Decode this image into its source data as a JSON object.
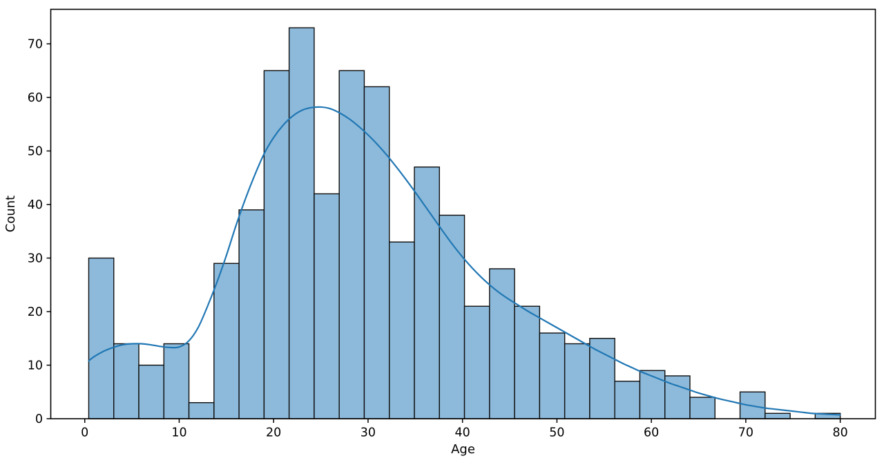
{
  "chart_data": {
    "type": "histogram",
    "title": "",
    "xlabel": "Age",
    "ylabel": "Count",
    "xlim": [
      -3.6,
      83.72
    ],
    "ylim": [
      0,
      76.45
    ],
    "xticks": [
      0,
      10,
      20,
      30,
      40,
      50,
      60,
      70,
      80
    ],
    "yticks": [
      0,
      10,
      20,
      30,
      40,
      50,
      60,
      70
    ],
    "grid": false,
    "legend": "none",
    "bins": {
      "edges": [
        0.42,
        3.073,
        5.725,
        8.378,
        11.031,
        13.683,
        16.336,
        18.989,
        21.641,
        24.294,
        26.947,
        29.599,
        32.252,
        34.905,
        37.557,
        40.21,
        42.863,
        45.515,
        48.168,
        50.821,
        53.473,
        56.126,
        58.779,
        61.431,
        64.084,
        66.737,
        69.389,
        72.042,
        74.695,
        77.347,
        80.0
      ],
      "counts": [
        30,
        14,
        10,
        14,
        3,
        29,
        39,
        65,
        73,
        42,
        65,
        62,
        33,
        47,
        38,
        21,
        28,
        21,
        16,
        14,
        15,
        7,
        9,
        8,
        4,
        0,
        5,
        1,
        0,
        1
      ]
    },
    "kde_series": {
      "name": "kde",
      "points": [
        [
          0.42,
          10.8
        ],
        [
          1,
          11.6
        ],
        [
          2,
          12.6
        ],
        [
          3,
          13.3
        ],
        [
          4,
          13.8
        ],
        [
          5,
          14.0
        ],
        [
          6,
          14.0
        ],
        [
          7,
          13.8
        ],
        [
          8,
          13.5
        ],
        [
          9,
          13.3
        ],
        [
          10,
          13.4
        ],
        [
          11,
          14.5
        ],
        [
          12,
          17.0
        ],
        [
          13,
          21.0
        ],
        [
          14,
          25.5
        ],
        [
          15,
          30.5
        ],
        [
          16,
          36.0
        ],
        [
          17,
          41.0
        ],
        [
          18,
          45.5
        ],
        [
          19,
          49.5
        ],
        [
          20,
          52.5
        ],
        [
          21,
          54.8
        ],
        [
          22,
          56.5
        ],
        [
          23,
          57.6
        ],
        [
          24,
          58.1
        ],
        [
          25,
          58.2
        ],
        [
          26,
          57.9
        ],
        [
          27,
          57.1
        ],
        [
          28,
          56.0
        ],
        [
          29,
          54.6
        ],
        [
          30,
          53.0
        ],
        [
          31,
          51.2
        ],
        [
          32,
          49.2
        ],
        [
          33,
          47.0
        ],
        [
          34,
          44.7
        ],
        [
          35,
          42.3
        ],
        [
          36,
          39.8
        ],
        [
          37,
          37.3
        ],
        [
          38,
          34.8
        ],
        [
          39,
          32.4
        ],
        [
          40,
          30.2
        ],
        [
          41,
          28.2
        ],
        [
          42,
          26.4
        ],
        [
          43,
          24.8
        ],
        [
          44,
          23.4
        ],
        [
          45,
          22.2
        ],
        [
          46,
          21.1
        ],
        [
          47,
          20.0
        ],
        [
          48,
          19.0
        ],
        [
          49,
          18.0
        ],
        [
          50,
          17.0
        ],
        [
          51,
          16.0
        ],
        [
          52,
          15.0
        ],
        [
          53,
          14.0
        ],
        [
          54,
          13.0
        ],
        [
          55,
          12.1
        ],
        [
          56,
          11.2
        ],
        [
          57,
          10.3
        ],
        [
          58,
          9.5
        ],
        [
          59,
          8.7
        ],
        [
          60,
          8.0
        ],
        [
          61,
          7.3
        ],
        [
          62,
          6.6
        ],
        [
          63,
          6.0
        ],
        [
          64,
          5.4
        ],
        [
          65,
          4.8
        ],
        [
          66,
          4.3
        ],
        [
          67,
          3.8
        ],
        [
          68,
          3.4
        ],
        [
          69,
          3.0
        ],
        [
          70,
          2.6
        ],
        [
          71,
          2.3
        ],
        [
          72,
          2.0
        ],
        [
          73,
          1.8
        ],
        [
          74,
          1.6
        ],
        [
          75,
          1.4
        ],
        [
          76,
          1.2
        ],
        [
          77,
          1.0
        ],
        [
          78,
          0.9
        ],
        [
          79,
          0.8
        ],
        [
          80,
          0.7
        ]
      ]
    },
    "colors": {
      "bar_fill": "#8dbada",
      "bar_edge": "#0d0d0d",
      "kde_line": "#2077b4",
      "axis": "#000000",
      "background": "#ffffff"
    }
  }
}
